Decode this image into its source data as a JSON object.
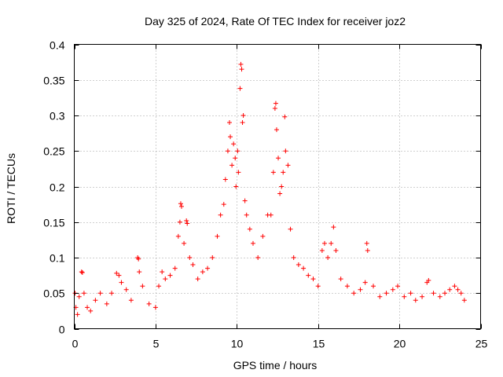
{
  "chart_data": {
    "type": "scatter",
    "title": "Day 325 of 2024, Rate Of TEC Index for receiver joz2",
    "xlabel": "GPS time / hours",
    "ylabel": "ROTI / TECUs",
    "xlim": [
      0,
      25
    ],
    "ylim": [
      0,
      0.4
    ],
    "x_ticks": [
      0,
      5,
      10,
      15,
      20,
      25
    ],
    "x_tick_labels": [
      "0",
      "5",
      "10",
      "15",
      "20",
      "25"
    ],
    "y_ticks": [
      0,
      0.05,
      0.1,
      0.15,
      0.2,
      0.25,
      0.3,
      0.35,
      0.4
    ],
    "y_tick_labels": [
      "0",
      "0.05",
      "0.1",
      "0.15",
      "0.2",
      "0.25",
      "0.3",
      "0.35",
      "0.4"
    ],
    "grid": true,
    "marker": "+",
    "color": "#ff0000",
    "series": [
      {
        "name": "ROTI",
        "points": [
          [
            0.05,
            0.05
          ],
          [
            0.1,
            0.03
          ],
          [
            0.2,
            0.02
          ],
          [
            0.3,
            0.045
          ],
          [
            0.45,
            0.08
          ],
          [
            0.5,
            0.079
          ],
          [
            0.6,
            0.05
          ],
          [
            0.8,
            0.03
          ],
          [
            1.0,
            0.025
          ],
          [
            1.3,
            0.04
          ],
          [
            1.6,
            0.05
          ],
          [
            2.0,
            0.035
          ],
          [
            2.3,
            0.05
          ],
          [
            2.6,
            0.078
          ],
          [
            2.75,
            0.075
          ],
          [
            2.9,
            0.065
          ],
          [
            3.2,
            0.055
          ],
          [
            3.5,
            0.04
          ],
          [
            3.9,
            0.1
          ],
          [
            3.95,
            0.098
          ],
          [
            4.0,
            0.08
          ],
          [
            4.2,
            0.06
          ],
          [
            4.6,
            0.035
          ],
          [
            5.0,
            0.03
          ],
          [
            5.2,
            0.06
          ],
          [
            5.4,
            0.08
          ],
          [
            5.6,
            0.07
          ],
          [
            5.9,
            0.075
          ],
          [
            6.2,
            0.085
          ],
          [
            6.4,
            0.13
          ],
          [
            6.5,
            0.15
          ],
          [
            6.55,
            0.176
          ],
          [
            6.6,
            0.172
          ],
          [
            6.75,
            0.12
          ],
          [
            6.9,
            0.152
          ],
          [
            6.95,
            0.148
          ],
          [
            7.1,
            0.1
          ],
          [
            7.3,
            0.09
          ],
          [
            7.6,
            0.07
          ],
          [
            7.9,
            0.08
          ],
          [
            8.2,
            0.085
          ],
          [
            8.5,
            0.1
          ],
          [
            8.8,
            0.13
          ],
          [
            9.0,
            0.16
          ],
          [
            9.2,
            0.175
          ],
          [
            9.3,
            0.21
          ],
          [
            9.45,
            0.25
          ],
          [
            9.55,
            0.29
          ],
          [
            9.6,
            0.27
          ],
          [
            9.7,
            0.23
          ],
          [
            9.8,
            0.26
          ],
          [
            9.9,
            0.24
          ],
          [
            9.95,
            0.2
          ],
          [
            10.05,
            0.25
          ],
          [
            10.1,
            0.22
          ],
          [
            10.2,
            0.338
          ],
          [
            10.25,
            0.372
          ],
          [
            10.3,
            0.365
          ],
          [
            10.35,
            0.29
          ],
          [
            10.4,
            0.3
          ],
          [
            10.5,
            0.18
          ],
          [
            10.6,
            0.16
          ],
          [
            10.8,
            0.14
          ],
          [
            11.0,
            0.12
          ],
          [
            11.3,
            0.1
          ],
          [
            11.6,
            0.13
          ],
          [
            11.9,
            0.16
          ],
          [
            12.1,
            0.16
          ],
          [
            12.25,
            0.22
          ],
          [
            12.35,
            0.31
          ],
          [
            12.4,
            0.317
          ],
          [
            12.45,
            0.28
          ],
          [
            12.55,
            0.24
          ],
          [
            12.65,
            0.19
          ],
          [
            12.75,
            0.2
          ],
          [
            12.85,
            0.22
          ],
          [
            12.95,
            0.298
          ],
          [
            13.0,
            0.25
          ],
          [
            13.15,
            0.23
          ],
          [
            13.3,
            0.14
          ],
          [
            13.5,
            0.1
          ],
          [
            13.8,
            0.09
          ],
          [
            14.1,
            0.085
          ],
          [
            14.4,
            0.075
          ],
          [
            14.7,
            0.07
          ],
          [
            15.0,
            0.06
          ],
          [
            15.25,
            0.11
          ],
          [
            15.4,
            0.12
          ],
          [
            15.6,
            0.1
          ],
          [
            15.8,
            0.12
          ],
          [
            15.95,
            0.143
          ],
          [
            16.1,
            0.11
          ],
          [
            16.4,
            0.07
          ],
          [
            16.8,
            0.06
          ],
          [
            17.2,
            0.05
          ],
          [
            17.6,
            0.055
          ],
          [
            17.9,
            0.065
          ],
          [
            18.0,
            0.12
          ],
          [
            18.05,
            0.11
          ],
          [
            18.4,
            0.06
          ],
          [
            18.8,
            0.045
          ],
          [
            19.2,
            0.05
          ],
          [
            19.6,
            0.055
          ],
          [
            19.9,
            0.06
          ],
          [
            20.3,
            0.045
          ],
          [
            20.7,
            0.05
          ],
          [
            21.0,
            0.04
          ],
          [
            21.4,
            0.045
          ],
          [
            21.7,
            0.065
          ],
          [
            21.8,
            0.068
          ],
          [
            22.1,
            0.05
          ],
          [
            22.5,
            0.045
          ],
          [
            22.8,
            0.05
          ],
          [
            23.1,
            0.055
          ],
          [
            23.4,
            0.06
          ],
          [
            23.6,
            0.055
          ],
          [
            23.8,
            0.05
          ],
          [
            24.0,
            0.04
          ]
        ]
      }
    ]
  }
}
